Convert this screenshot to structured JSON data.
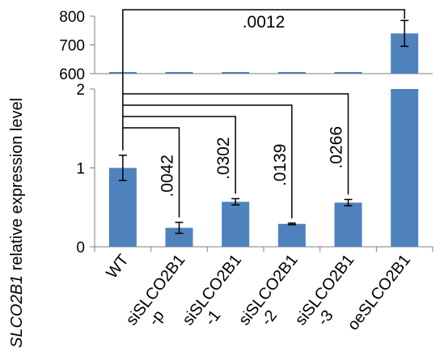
{
  "chart_data": {
    "type": "bar",
    "axis_break": true,
    "ylabel_gene": "SLCO2B1",
    "ylabel_rest": " relative expression level",
    "categories": [
      [
        "WT"
      ],
      [
        "siSLCO2B1",
        "-p"
      ],
      [
        "siSLCO2B1",
        "-1"
      ],
      [
        "siSLCO2B1",
        "-2"
      ],
      [
        "siSLCO2B1",
        "-3"
      ],
      [
        "oeSLCO2B1"
      ]
    ],
    "values": [
      1.0,
      0.24,
      0.57,
      0.29,
      0.56,
      740
    ],
    "errors": [
      0.16,
      0.07,
      0.04,
      0.01,
      0.04,
      45
    ],
    "lower_panel": {
      "ylim": [
        0,
        2
      ],
      "ticks": [
        "0",
        "1",
        "2"
      ]
    },
    "upper_panel": {
      "ylim": [
        600,
        800
      ],
      "ticks": [
        "600",
        "700",
        "800"
      ]
    },
    "bar_color": "#4f81bd",
    "comparisons": [
      {
        "from": 0,
        "to": 1,
        "p": ".0042"
      },
      {
        "from": 0,
        "to": 2,
        "p": ".0302"
      },
      {
        "from": 0,
        "to": 3,
        "p": ".0139"
      },
      {
        "from": 0,
        "to": 4,
        "p": ".0266"
      },
      {
        "from": 0,
        "to": 5,
        "p": ".0012"
      }
    ]
  }
}
